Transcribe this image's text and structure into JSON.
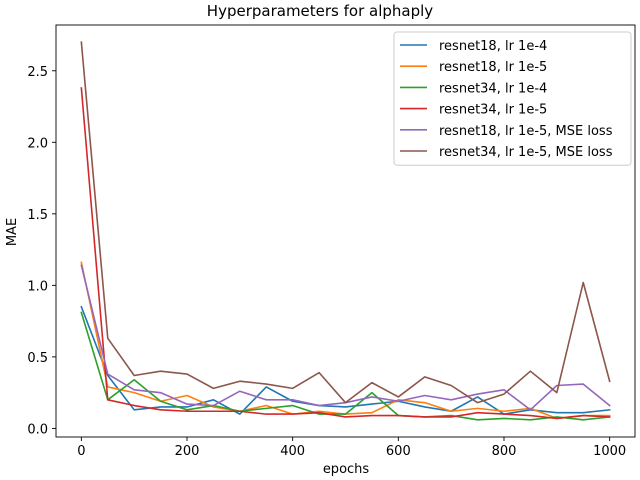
{
  "chart_data": {
    "type": "line",
    "title": "Hyperparameters for alphaply",
    "xlabel": "epochs",
    "ylabel": "MAE",
    "xlim": [
      -48,
      1048
    ],
    "ylim": [
      -0.06,
      2.82
    ],
    "xticks": [
      0,
      200,
      400,
      600,
      800,
      1000
    ],
    "yticks": [
      0.0,
      0.5,
      1.0,
      1.5,
      2.0,
      2.5
    ],
    "ytick_labels": [
      "0.0",
      "0.5",
      "1.0",
      "1.5",
      "2.0",
      "2.5"
    ],
    "grid": false,
    "legend_position": "top-right",
    "x": [
      0,
      50,
      100,
      150,
      200,
      250,
      300,
      350,
      400,
      450,
      500,
      550,
      600,
      650,
      700,
      750,
      800,
      850,
      900,
      950,
      1000
    ],
    "series": [
      {
        "name": "resnet18, lr 1e-4",
        "color": "#1f77b4",
        "values": [
          0.85,
          0.37,
          0.13,
          0.15,
          0.15,
          0.2,
          0.1,
          0.29,
          0.19,
          0.16,
          0.15,
          0.17,
          0.19,
          0.15,
          0.12,
          0.22,
          0.1,
          0.13,
          0.11,
          0.11,
          0.13
        ]
      },
      {
        "name": "resnet18, lr 1e-5",
        "color": "#ff7f0e",
        "values": [
          1.16,
          0.29,
          0.25,
          0.19,
          0.23,
          0.15,
          0.12,
          0.16,
          0.1,
          0.12,
          0.1,
          0.11,
          0.2,
          0.18,
          0.12,
          0.14,
          0.12,
          0.14,
          0.07,
          0.09,
          0.09
        ]
      },
      {
        "name": "resnet34, lr 1e-4",
        "color": "#2ca02c",
        "values": [
          0.81,
          0.2,
          0.34,
          0.19,
          0.13,
          0.16,
          0.12,
          0.14,
          0.16,
          0.1,
          0.1,
          0.25,
          0.09,
          0.08,
          0.09,
          0.06,
          0.07,
          0.06,
          0.08,
          0.06,
          0.08
        ]
      },
      {
        "name": "resnet34, lr 1e-5",
        "color": "#d62728",
        "values": [
          2.38,
          0.2,
          0.16,
          0.13,
          0.12,
          0.12,
          0.12,
          0.1,
          0.1,
          0.11,
          0.08,
          0.09,
          0.09,
          0.08,
          0.08,
          0.11,
          0.1,
          0.09,
          0.07,
          0.09,
          0.08
        ]
      },
      {
        "name": "resnet18, lr 1e-5, MSE loss",
        "color": "#9467bd",
        "values": [
          1.14,
          0.38,
          0.27,
          0.25,
          0.17,
          0.16,
          0.26,
          0.2,
          0.2,
          0.16,
          0.18,
          0.22,
          0.19,
          0.23,
          0.2,
          0.24,
          0.27,
          0.13,
          0.3,
          0.31,
          0.16
        ]
      },
      {
        "name": "resnet34, lr 1e-5, MSE loss",
        "color": "#8c564b",
        "values": [
          2.7,
          0.63,
          0.37,
          0.4,
          0.38,
          0.28,
          0.33,
          0.31,
          0.28,
          0.39,
          0.18,
          0.32,
          0.22,
          0.36,
          0.3,
          0.18,
          0.24,
          0.4,
          0.25,
          1.02,
          0.33
        ]
      }
    ]
  }
}
